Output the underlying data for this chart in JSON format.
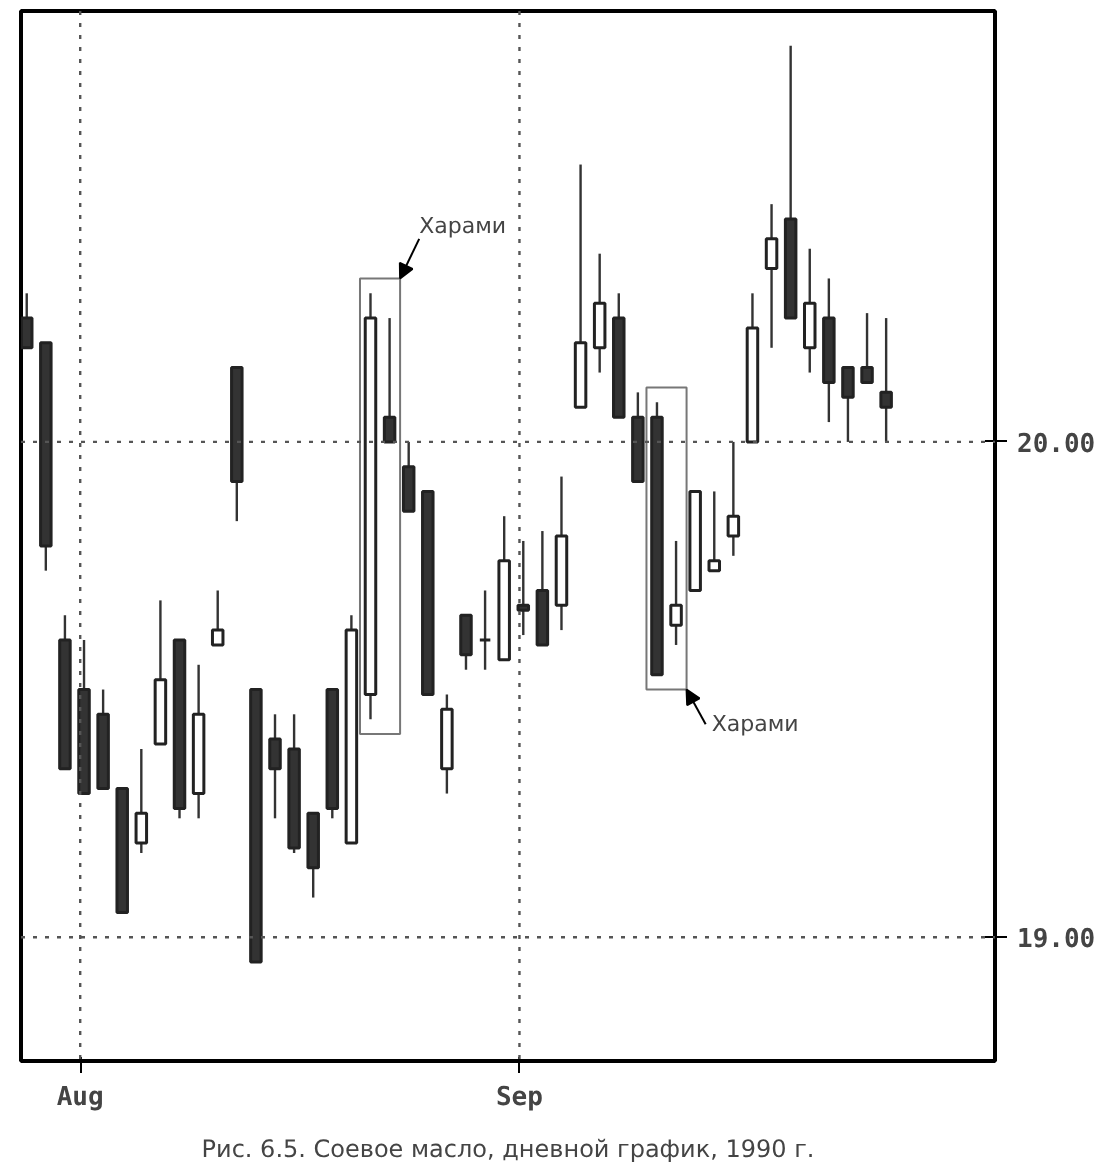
{
  "chart_data": {
    "type": "candlestick",
    "categories": [
      null,
      null,
      null,
      "Aug",
      null,
      null,
      null,
      null,
      null,
      null,
      null,
      null,
      null,
      null,
      null,
      null,
      null,
      null,
      null,
      null,
      null,
      null,
      null,
      null,
      null,
      null,
      "Sep",
      null,
      null,
      null,
      null,
      null,
      null,
      null,
      null,
      null,
      null,
      null,
      null,
      null,
      null,
      null,
      null,
      null,
      null,
      null
    ],
    "ohlc": [
      [
        20.25,
        20.3,
        20.19,
        20.19
      ],
      [
        20.2,
        20.2,
        19.74,
        19.79
      ],
      [
        19.6,
        19.65,
        19.34,
        19.34
      ],
      [
        19.5,
        19.6,
        19.29,
        19.29
      ],
      [
        19.45,
        19.5,
        19.3,
        19.3
      ],
      [
        19.3,
        19.3,
        19.05,
        19.05
      ],
      [
        19.19,
        19.38,
        19.17,
        19.25
      ],
      [
        19.39,
        19.68,
        19.39,
        19.52
      ],
      [
        19.6,
        19.6,
        19.24,
        19.26
      ],
      [
        19.29,
        19.55,
        19.24,
        19.45
      ],
      [
        19.59,
        19.7,
        19.59,
        19.62
      ],
      [
        20.15,
        20.15,
        19.84,
        19.92
      ],
      [
        19.5,
        19.5,
        18.95,
        18.95
      ],
      [
        19.4,
        19.45,
        19.24,
        19.34
      ],
      [
        19.38,
        19.45,
        19.17,
        19.18
      ],
      [
        19.25,
        19.25,
        19.08,
        19.14
      ],
      [
        19.5,
        19.5,
        19.24,
        19.26
      ],
      [
        19.19,
        19.65,
        19.19,
        19.62
      ],
      [
        19.49,
        20.3,
        19.44,
        20.25
      ],
      [
        20.05,
        20.25,
        20.0,
        20.0
      ],
      [
        19.95,
        20.0,
        19.86,
        19.86
      ],
      [
        19.9,
        19.9,
        19.49,
        19.49
      ],
      [
        19.34,
        19.49,
        19.29,
        19.46
      ],
      [
        19.65,
        19.65,
        19.54,
        19.57
      ],
      [
        19.6,
        19.7,
        19.54,
        19.6
      ],
      [
        19.56,
        19.85,
        19.56,
        19.76
      ],
      [
        19.67,
        19.8,
        19.61,
        19.66
      ],
      [
        19.7,
        19.82,
        19.59,
        19.59
      ],
      [
        19.67,
        19.93,
        19.62,
        19.81
      ],
      [
        20.07,
        20.56,
        20.07,
        20.2
      ],
      [
        20.19,
        20.38,
        20.14,
        20.28
      ],
      [
        20.25,
        20.3,
        20.05,
        20.05
      ],
      [
        20.05,
        20.1,
        19.92,
        19.92
      ],
      [
        20.05,
        20.08,
        19.53,
        19.53
      ],
      [
        19.63,
        19.8,
        19.59,
        19.67
      ],
      [
        19.7,
        19.9,
        19.7,
        19.9
      ],
      [
        19.74,
        19.9,
        19.74,
        19.76
      ],
      [
        19.81,
        20.0,
        19.77,
        19.85
      ],
      [
        20.0,
        20.3,
        20.0,
        20.23
      ],
      [
        20.35,
        20.48,
        20.19,
        20.41
      ],
      [
        20.45,
        20.8,
        20.25,
        20.25
      ],
      [
        20.19,
        20.39,
        20.14,
        20.28
      ],
      [
        20.25,
        20.33,
        20.04,
        20.12
      ],
      [
        20.15,
        20.15,
        20.0,
        20.09
      ],
      [
        20.15,
        20.26,
        20.12,
        20.12
      ],
      [
        20.1,
        20.25,
        20.0,
        20.07
      ]
    ],
    "ylim": [
      18.75,
      20.87
    ],
    "yticks": [
      {
        "value": 19.0,
        "label": "19.00"
      },
      {
        "value": 20.0,
        "label": "20.00"
      }
    ],
    "ref_lines": [
      {
        "axis": "y",
        "value": 20.0,
        "line_style": "dotted"
      },
      {
        "axis": "y",
        "value": 19.0,
        "line_style": "dotted"
      }
    ],
    "grid": "x",
    "annotations": [
      "Харами",
      "Харами",
      "Рис. 6.5. Соевое масло, дневной график, 1990 г."
    ]
  }
}
